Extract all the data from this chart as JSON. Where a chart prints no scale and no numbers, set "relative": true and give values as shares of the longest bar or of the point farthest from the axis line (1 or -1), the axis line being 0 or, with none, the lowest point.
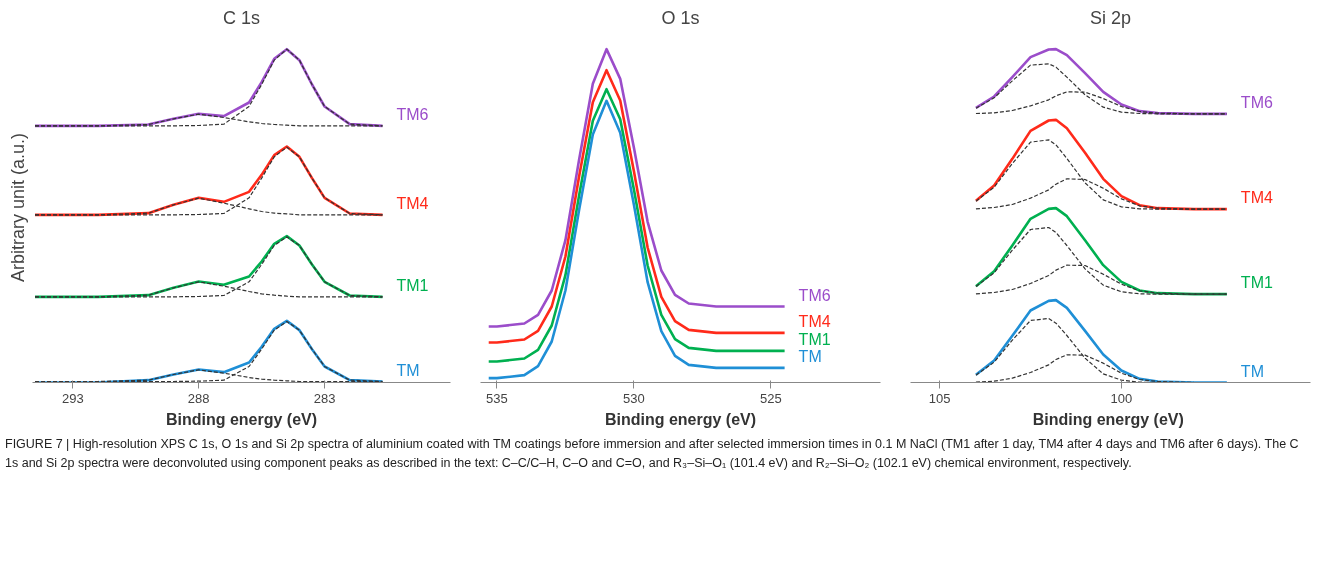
{
  "chart_data": [
    {
      "type": "line",
      "title": "C 1s",
      "xlabel": "Binding energy (eV)",
      "ylabel": "Arbitrary unit (a.u.)",
      "relative": true,
      "grid": false,
      "xlim": [
        294.6,
        278.0
      ],
      "xticks": [
        293,
        288,
        283
      ],
      "x": [
        294.5,
        292,
        290,
        289,
        288,
        287,
        286,
        285.5,
        285,
        284.5,
        284,
        283.5,
        283,
        282,
        280.7
      ],
      "annotations": [
        "FIGURE 7 | High-resolution XPS C 1s, O 1s and Si 2p spectra of aluminium coated with TM coatings before immersion and after selected immersion times in 0.1 M NaCl (TM1 after 1 day, TM4 after 4 days and TM6 after 6 days). The C 1s and Si 2p spectra were deconvoluted using component peaks as described in the text: C–C/C–H, C–O and C=O, and R₃–Si–O₁ (101.4 eV) and R₂–Si–O₂ (102.1 eV) chemical environment, respectively."
      ],
      "series": [
        {
          "name": "TM6",
          "color": "#9b4dca",
          "values": [
            0.77,
            0.77,
            0.774,
            0.791,
            0.806,
            0.799,
            0.84,
            0.901,
            0.971,
            1.0,
            0.967,
            0.894,
            0.828,
            0.775,
            0.77
          ]
        },
        {
          "color": "#333333",
          "line_style": "dashed",
          "values": [
            0.77,
            0.77,
            0.77,
            0.77,
            0.771,
            0.775,
            0.828,
            0.894,
            0.967,
            1.0,
            0.967,
            0.894,
            0.828,
            0.775,
            0.77
          ]
        },
        {
          "color": "#333333",
          "line_style": "dashed",
          "values": [
            0.77,
            0.77,
            0.774,
            0.791,
            0.805,
            0.795,
            0.782,
            0.777,
            0.774,
            0.772,
            0.77,
            0.77,
            0.77,
            0.77,
            0.77
          ]
        },
        {
          "name": "TM4",
          "color": "#ff2a1a",
          "values": [
            0.503,
            0.503,
            0.508,
            0.533,
            0.554,
            0.542,
            0.572,
            0.623,
            0.682,
            0.708,
            0.677,
            0.613,
            0.554,
            0.507,
            0.503
          ]
        },
        {
          "color": "#333333",
          "line_style": "dashed",
          "values": [
            0.503,
            0.503,
            0.503,
            0.503,
            0.504,
            0.507,
            0.554,
            0.613,
            0.677,
            0.706,
            0.677,
            0.613,
            0.554,
            0.507,
            0.503
          ]
        },
        {
          "color": "#333333",
          "line_style": "dashed",
          "values": [
            0.503,
            0.503,
            0.508,
            0.533,
            0.553,
            0.538,
            0.521,
            0.513,
            0.508,
            0.506,
            0.503,
            0.503,
            0.503,
            0.503,
            0.503
          ]
        },
        {
          "name": "TM1",
          "color": "#00b050",
          "values": [
            0.257,
            0.257,
            0.262,
            0.284,
            0.303,
            0.293,
            0.318,
            0.363,
            0.416,
            0.439,
            0.411,
            0.354,
            0.302,
            0.261,
            0.257
          ]
        },
        {
          "color": "#333333",
          "line_style": "dashed",
          "values": [
            0.257,
            0.257,
            0.257,
            0.257,
            0.258,
            0.261,
            0.302,
            0.354,
            0.411,
            0.437,
            0.411,
            0.354,
            0.302,
            0.261,
            0.257
          ]
        },
        {
          "color": "#333333",
          "line_style": "dashed",
          "values": [
            0.257,
            0.257,
            0.262,
            0.284,
            0.302,
            0.289,
            0.273,
            0.266,
            0.262,
            0.259,
            0.257,
            0.257,
            0.257,
            0.257,
            0.257
          ]
        },
        {
          "name": "TM",
          "color": "#1f8fd6",
          "values": [
            0.0,
            0.0,
            0.007,
            0.024,
            0.039,
            0.031,
            0.06,
            0.107,
            0.161,
            0.185,
            0.157,
            0.1,
            0.048,
            0.007,
            0.003
          ]
        },
        {
          "color": "#333333",
          "line_style": "dashed",
          "values": [
            0.003,
            0.003,
            0.003,
            0.003,
            0.004,
            0.007,
            0.048,
            0.1,
            0.157,
            0.183,
            0.157,
            0.1,
            0.048,
            0.007,
            0.003
          ]
        },
        {
          "color": "#333333",
          "line_style": "dashed",
          "values": [
            0.003,
            0.003,
            0.007,
            0.024,
            0.038,
            0.028,
            0.015,
            0.01,
            0.007,
            0.005,
            0.003,
            0.003,
            0.003,
            0.003,
            0.003
          ]
        }
      ]
    },
    {
      "type": "line",
      "title": "O 1s",
      "xlabel": "Binding energy (eV)",
      "relative": true,
      "grid": false,
      "xlim": [
        535.6,
        521.0
      ],
      "xticks": [
        535,
        530,
        525
      ],
      "x": [
        535.3,
        535,
        534,
        533.5,
        533,
        532.5,
        532,
        531.5,
        531,
        530.5,
        530,
        529.5,
        529,
        528.5,
        528,
        527,
        524.5
      ],
      "series": [
        {
          "name": "TM6",
          "color": "#9b4dca",
          "values": [
            0.168,
            0.168,
            0.177,
            0.203,
            0.276,
            0.427,
            0.669,
            0.896,
            1.0,
            0.911,
            0.704,
            0.482,
            0.336,
            0.263,
            0.237,
            0.228,
            0.228
          ]
        },
        {
          "name": "TM4",
          "color": "#ff2a1a",
          "values": [
            0.12,
            0.12,
            0.129,
            0.155,
            0.228,
            0.378,
            0.619,
            0.841,
            0.937,
            0.846,
            0.634,
            0.405,
            0.257,
            0.184,
            0.158,
            0.149,
            0.149
          ]
        },
        {
          "name": "TM1",
          "color": "#00b050",
          "values": [
            0.063,
            0.063,
            0.072,
            0.098,
            0.171,
            0.322,
            0.562,
            0.785,
            0.88,
            0.79,
            0.579,
            0.351,
            0.203,
            0.13,
            0.104,
            0.095,
            0.095
          ]
        },
        {
          "name": "TM",
          "color": "#1f8fd6",
          "values": [
            0.013,
            0.013,
            0.022,
            0.049,
            0.123,
            0.276,
            0.518,
            0.744,
            0.845,
            0.749,
            0.533,
            0.301,
            0.154,
            0.08,
            0.053,
            0.044,
            0.044
          ]
        }
      ]
    },
    {
      "type": "line",
      "title": "Si 2p",
      "xlabel": "Binding  energy (eV)",
      "relative": true,
      "grid": false,
      "xlim": [
        105.8,
        94.8
      ],
      "xticks": [
        105,
        100
      ],
      "x": [
        104,
        103.5,
        103,
        102.5,
        102,
        101.8,
        101.5,
        101,
        100.5,
        100,
        99.5,
        99,
        98,
        97.1
      ],
      "series": [
        {
          "name": "TM6",
          "color": "#9b4dca",
          "values": [
            0.824,
            0.858,
            0.916,
            0.976,
            0.999,
            1.0,
            0.982,
            0.928,
            0.872,
            0.834,
            0.814,
            0.808,
            0.806,
            0.806
          ]
        },
        {
          "color": "#333333",
          "line_style": "dashed",
          "values": [
            0.823,
            0.854,
            0.905,
            0.952,
            0.956,
            0.946,
            0.916,
            0.863,
            0.826,
            0.811,
            0.807,
            0.806,
            0.806,
            0.806
          ]
        },
        {
          "color": "#333333",
          "line_style": "dashed",
          "values": [
            0.807,
            0.809,
            0.816,
            0.83,
            0.848,
            0.86,
            0.872,
            0.871,
            0.852,
            0.828,
            0.813,
            0.808,
            0.806,
            0.806
          ]
        },
        {
          "name": "TM4",
          "color": "#ff2a1a",
          "values": [
            0.545,
            0.591,
            0.671,
            0.755,
            0.786,
            0.788,
            0.763,
            0.689,
            0.611,
            0.559,
            0.532,
            0.523,
            0.52,
            0.52
          ]
        },
        {
          "color": "#333333",
          "line_style": "dashed",
          "values": [
            0.544,
            0.586,
            0.657,
            0.721,
            0.728,
            0.713,
            0.672,
            0.599,
            0.548,
            0.527,
            0.521,
            0.52,
            0.52,
            0.52
          ]
        },
        {
          "color": "#333333",
          "line_style": "dashed",
          "values": [
            0.521,
            0.525,
            0.534,
            0.553,
            0.578,
            0.595,
            0.611,
            0.609,
            0.583,
            0.551,
            0.53,
            0.523,
            0.52,
            0.52
          ]
        },
        {
          "name": "TM1",
          "color": "#00b050",
          "values": [
            0.289,
            0.334,
            0.411,
            0.491,
            0.521,
            0.523,
            0.499,
            0.427,
            0.352,
            0.302,
            0.276,
            0.268,
            0.265,
            0.265
          ]
        },
        {
          "color": "#333333",
          "line_style": "dashed",
          "values": [
            0.288,
            0.329,
            0.397,
            0.459,
            0.465,
            0.45,
            0.411,
            0.341,
            0.292,
            0.272,
            0.266,
            0.265,
            0.265,
            0.265
          ]
        },
        {
          "color": "#333333",
          "line_style": "dashed",
          "values": [
            0.266,
            0.27,
            0.279,
            0.297,
            0.321,
            0.337,
            0.352,
            0.351,
            0.325,
            0.295,
            0.275,
            0.268,
            0.265,
            0.265
          ]
        },
        {
          "name": "TM",
          "color": "#1f8fd6",
          "values": [
            0.023,
            0.066,
            0.14,
            0.216,
            0.245,
            0.247,
            0.224,
            0.155,
            0.084,
            0.036,
            0.011,
            0.003,
            0.0,
            0.0
          ]
        },
        {
          "color": "#333333",
          "line_style": "dashed",
          "values": [
            0.022,
            0.061,
            0.127,
            0.186,
            0.192,
            0.178,
            0.141,
            0.073,
            0.026,
            0.007,
            0.001,
            0.0,
            0.0,
            0.0
          ]
        },
        {
          "color": "#333333",
          "line_style": "dashed",
          "values": [
            0.001,
            0.004,
            0.013,
            0.03,
            0.053,
            0.069,
            0.083,
            0.082,
            0.058,
            0.028,
            0.009,
            0.003,
            0.0,
            0.0
          ]
        }
      ]
    }
  ]
}
